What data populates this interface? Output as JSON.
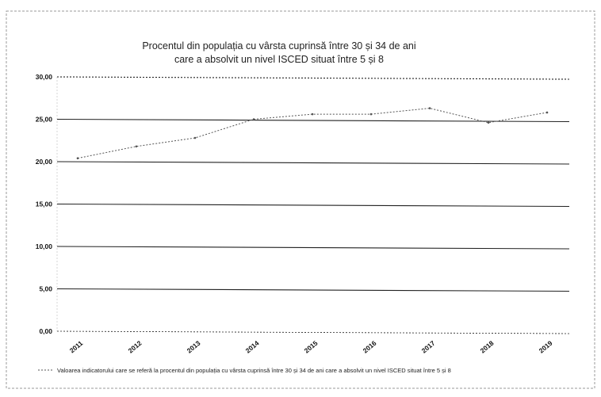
{
  "chart_data": {
    "type": "line",
    "title_lines": [
      "Procentul din populația cu vârsta cuprinsă între 30 și 34 de ani",
      "care a absolvit un nivel ISCED situat între 5 și 8"
    ],
    "x": [
      "2011",
      "2012",
      "2013",
      "2014",
      "2015",
      "2016",
      "2017",
      "2018",
      "2019"
    ],
    "y_ticks": [
      "30,00",
      "25,00",
      "20,00",
      "15,00",
      "10,00",
      "5,00",
      "0,00"
    ],
    "ylim": [
      0,
      30
    ],
    "series": [
      {
        "name": "Valoarea indicatorului care se referă la procentul din populația cu vârsta cuprinsă între 30 și 34 de ani care a absolvit un nivel ISCED situat între 5 și 8",
        "values": [
          20.4,
          21.8,
          22.8,
          25.0,
          25.6,
          25.6,
          26.3,
          24.6,
          25.8
        ],
        "color": "#555555",
        "style": "dotted"
      }
    ],
    "grid": true,
    "legend": "bottom"
  }
}
